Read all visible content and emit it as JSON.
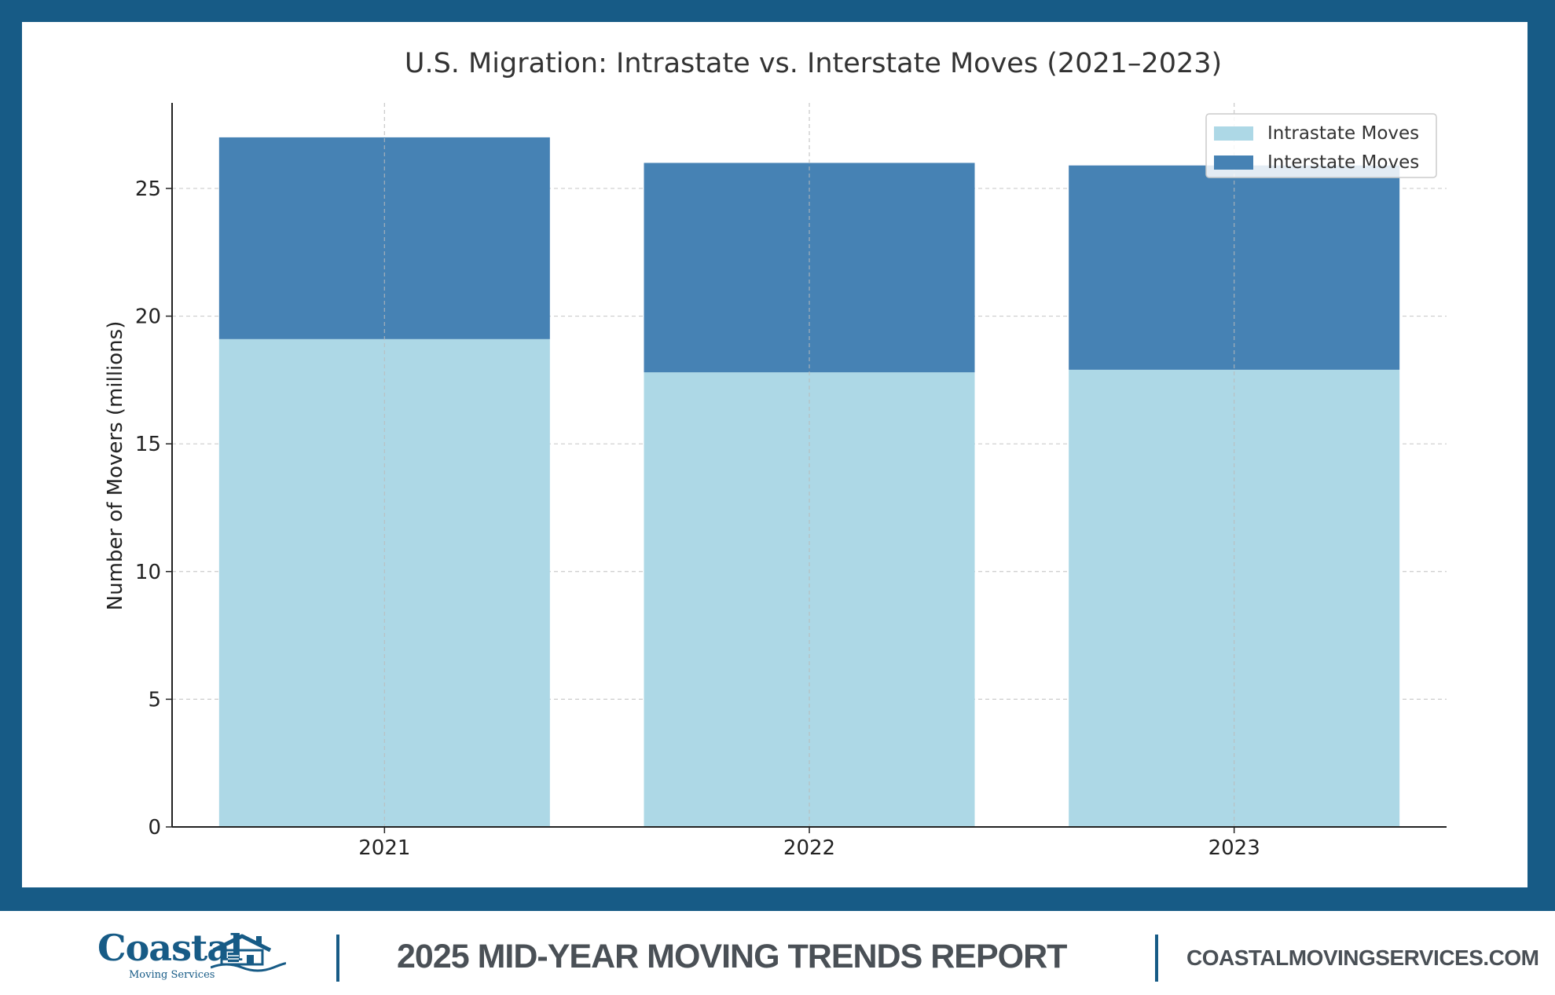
{
  "chart_data": {
    "type": "bar",
    "stacked": true,
    "title": "U.S. Migration: Intrastate vs. Interstate Moves (2021–2023)",
    "xlabel": "",
    "ylabel": "Number of Movers (millions)",
    "categories": [
      "2021",
      "2022",
      "2023"
    ],
    "series": [
      {
        "name": "Intrastate Moves",
        "color": "#add8e6",
        "values": [
          19.1,
          17.8,
          17.9
        ]
      },
      {
        "name": "Interstate Moves",
        "color": "#4682b4",
        "values": [
          7.9,
          8.2,
          8.0
        ]
      }
    ],
    "ylim": [
      0,
      28.35
    ],
    "yticks": [
      0,
      5,
      10,
      15,
      20,
      25
    ],
    "grid": true,
    "legend": "top-right"
  },
  "footer": {
    "logo_name": "Coastal",
    "logo_tagline": "Moving Services",
    "report_title": "2025 MID-YEAR MOVING TRENDS REPORT",
    "website": "COASTALMOVINGSERVICES.COM"
  },
  "colors": {
    "frame": "#175b86",
    "footer_text": "#4a5056"
  }
}
